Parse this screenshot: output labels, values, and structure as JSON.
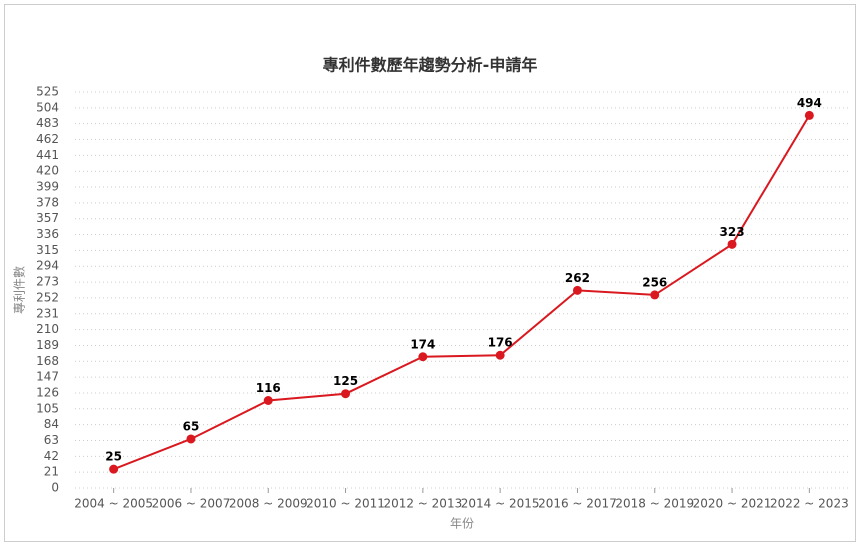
{
  "chart_data": {
    "type": "line",
    "title": "專利件數歷年趨勢分析-申請年",
    "x_label": "年份",
    "y_label": "專利件數",
    "categories": [
      "2004 ~ 2005",
      "2006 ~ 2007",
      "2008 ~ 2009",
      "2010 ~ 2011",
      "2012 ~ 2013",
      "2014 ~ 2015",
      "2016 ~ 2017",
      "2018 ~ 2019",
      "2020 ~ 2021",
      "2022 ~ 2023"
    ],
    "values": [
      25,
      65,
      116,
      125,
      174,
      176,
      262,
      256,
      323,
      494
    ],
    "color": "#d9191f",
    "ylim": [
      0,
      525
    ],
    "yticks": [
      0,
      21,
      42,
      63,
      84,
      105,
      126,
      147,
      168,
      189,
      210,
      231,
      252,
      273,
      294,
      315,
      336,
      357,
      378,
      399,
      420,
      441,
      462,
      483,
      504,
      525
    ],
    "grid": true
  }
}
